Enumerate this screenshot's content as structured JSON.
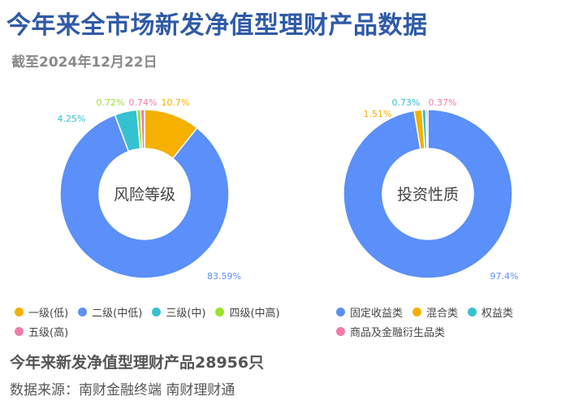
{
  "title": "今年来全市场新发净值型理财产品数据",
  "subtitle": "截至2024年12月22日",
  "footer": {
    "total": "今年来新发净值型理财产品28956只",
    "source": "数据来源：南财金融终端 南财理财通"
  },
  "chart_data": [
    {
      "type": "pie",
      "donut": true,
      "center_label": "风险等级",
      "categories": [
        "一级(低)",
        "二级(中低)",
        "三级(中)",
        "四级(中高)",
        "五级(高)"
      ],
      "values": [
        10.7,
        83.59,
        4.25,
        0.72,
        0.74
      ],
      "labels": [
        "10.7%",
        "83.59%",
        "4.25%",
        "0.72%",
        "0.74%"
      ],
      "colors": [
        "#f5b000",
        "#5b8ff9",
        "#35c2d0",
        "#9be22d",
        "#f07ca8"
      ],
      "legend": "bottom"
    },
    {
      "type": "pie",
      "donut": true,
      "center_label": "投资性质",
      "categories": [
        "固定收益类",
        "混合类",
        "权益类",
        "商品及金融衍生品类"
      ],
      "values": [
        97.4,
        1.51,
        0.73,
        0.37
      ],
      "labels": [
        "97.4%",
        "1.51%",
        "0.73%",
        "0.37%"
      ],
      "colors": [
        "#5b8ff9",
        "#f5b000",
        "#35c2d0",
        "#f07ca8"
      ],
      "legend": "bottom"
    }
  ]
}
